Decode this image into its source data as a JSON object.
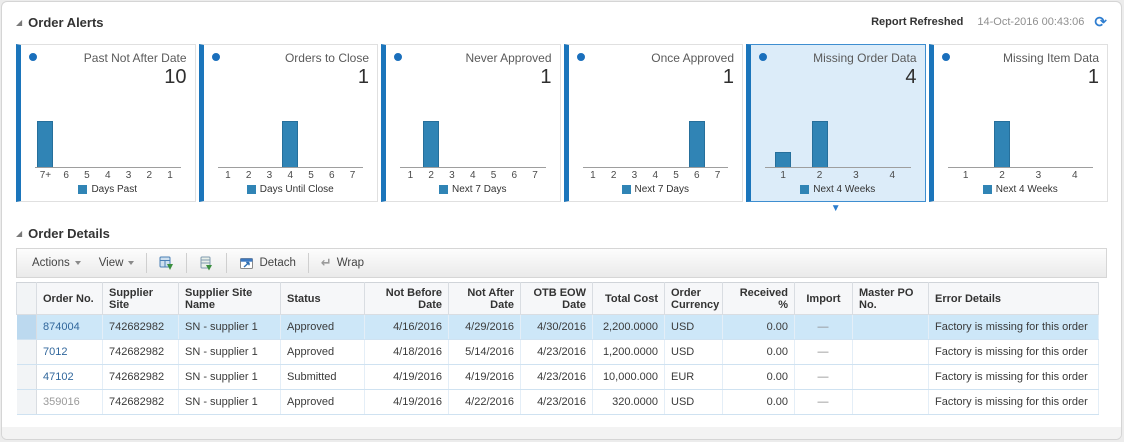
{
  "panel": {
    "alerts_title": "Order Alerts",
    "report_refreshed_label": "Report Refreshed",
    "report_refreshed_time": "14-Oct-2016 00:43:06",
    "details_title": "Order Details"
  },
  "colors": {
    "accent_blue": "#1b75bb",
    "bar_fill": "#3084b5",
    "selected_card_bg": "#dcecf9",
    "row_highlight": "#cde7f8",
    "link": "#31679c"
  },
  "icons": {
    "refresh": "refresh-icon",
    "alert_tile": "target-donut-icon",
    "wrap_glyph": "↵",
    "indicator": "▼"
  },
  "alerts": {
    "cards": [
      {
        "title": "Past Not After Date",
        "count": "10",
        "legend": "Days Past",
        "selected": false,
        "chart_data": {
          "type": "bar",
          "categories": [
            "7+",
            "6",
            "5",
            "4",
            "3",
            "2",
            "1"
          ],
          "values": [
            10,
            0,
            0,
            0,
            0,
            0,
            0
          ],
          "title": "Past Not After Date",
          "xlabel": "Days Past",
          "ylabel": "",
          "ylim": [
            0,
            10
          ]
        }
      },
      {
        "title": "Orders to Close",
        "count": "1",
        "legend": "Days Until Close",
        "selected": false,
        "chart_data": {
          "type": "bar",
          "categories": [
            "1",
            "2",
            "3",
            "4",
            "5",
            "6",
            "7"
          ],
          "values": [
            0,
            0,
            0,
            1,
            0,
            0,
            0
          ],
          "title": "Orders to Close",
          "xlabel": "Days Until Close",
          "ylabel": "",
          "ylim": [
            0,
            1
          ]
        }
      },
      {
        "title": "Never Approved",
        "count": "1",
        "legend": "Next 7 Days",
        "selected": false,
        "chart_data": {
          "type": "bar",
          "categories": [
            "1",
            "2",
            "3",
            "4",
            "5",
            "6",
            "7"
          ],
          "values": [
            0,
            1,
            0,
            0,
            0,
            0,
            0
          ],
          "title": "Never Approved",
          "xlabel": "Next 7 Days",
          "ylabel": "",
          "ylim": [
            0,
            1
          ]
        }
      },
      {
        "title": "Once Approved",
        "count": "1",
        "legend": "Next 7 Days",
        "selected": false,
        "chart_data": {
          "type": "bar",
          "categories": [
            "1",
            "2",
            "3",
            "4",
            "5",
            "6",
            "7"
          ],
          "values": [
            0,
            0,
            0,
            0,
            0,
            1,
            0
          ],
          "title": "Once Approved",
          "xlabel": "Next 7 Days",
          "ylabel": "",
          "ylim": [
            0,
            1
          ]
        }
      },
      {
        "title": "Missing Order Data",
        "count": "4",
        "legend": "Next 4 Weeks",
        "selected": true,
        "chart_data": {
          "type": "bar",
          "categories": [
            "1",
            "2",
            "3",
            "4"
          ],
          "values": [
            1,
            3,
            0,
            0
          ],
          "title": "Missing Order Data",
          "xlabel": "Next 4 Weeks",
          "ylabel": "",
          "ylim": [
            0,
            3
          ]
        }
      },
      {
        "title": "Missing Item Data",
        "count": "1",
        "legend": "Next 4 Weeks",
        "selected": false,
        "chart_data": {
          "type": "bar",
          "categories": [
            "1",
            "2",
            "3",
            "4"
          ],
          "values": [
            0,
            1,
            0,
            0
          ],
          "title": "Missing Item Data",
          "xlabel": "Next 4 Weeks",
          "ylabel": "",
          "ylim": [
            0,
            1
          ]
        }
      }
    ]
  },
  "toolbar": {
    "actions_label": "Actions",
    "view_label": "View",
    "detach_label": "Detach",
    "wrap_label": "Wrap"
  },
  "order_details": {
    "columns": [
      "Order No.",
      "Supplier Site",
      "Supplier Site Name",
      "Status",
      "Not Before Date",
      "Not After Date",
      "OTB EOW Date",
      "Total Cost",
      "Order Currency",
      "Received %",
      "Import",
      "Master PO No.",
      "Error Details"
    ],
    "rows": [
      {
        "selected": true,
        "order_no_style": "link",
        "cells": [
          "874004",
          "742682982",
          "SN - supplier 1",
          "Approved",
          "4/16/2016",
          "4/29/2016",
          "4/30/2016",
          "2,200.0000",
          "USD",
          "0.00",
          "—",
          "",
          "Factory is missing for this order"
        ]
      },
      {
        "selected": false,
        "order_no_style": "link",
        "cells": [
          "7012",
          "742682982",
          "SN - supplier 1",
          "Approved",
          "4/18/2016",
          "5/14/2016",
          "4/23/2016",
          "1,200.0000",
          "USD",
          "0.00",
          "—",
          "",
          "Factory is missing for this order"
        ]
      },
      {
        "selected": false,
        "order_no_style": "link",
        "cells": [
          "47102",
          "742682982",
          "SN - supplier 1",
          "Submitted",
          "4/19/2016",
          "4/19/2016",
          "4/23/2016",
          "10,000.000",
          "EUR",
          "0.00",
          "—",
          "",
          "Factory is missing for this order"
        ]
      },
      {
        "selected": false,
        "order_no_style": "muted",
        "cells": [
          "359016",
          "742682982",
          "SN - supplier 1",
          "Approved",
          "4/19/2016",
          "4/22/2016",
          "4/23/2016",
          "320.0000",
          "USD",
          "0.00",
          "—",
          "",
          "Factory is missing for this order"
        ]
      }
    ]
  }
}
